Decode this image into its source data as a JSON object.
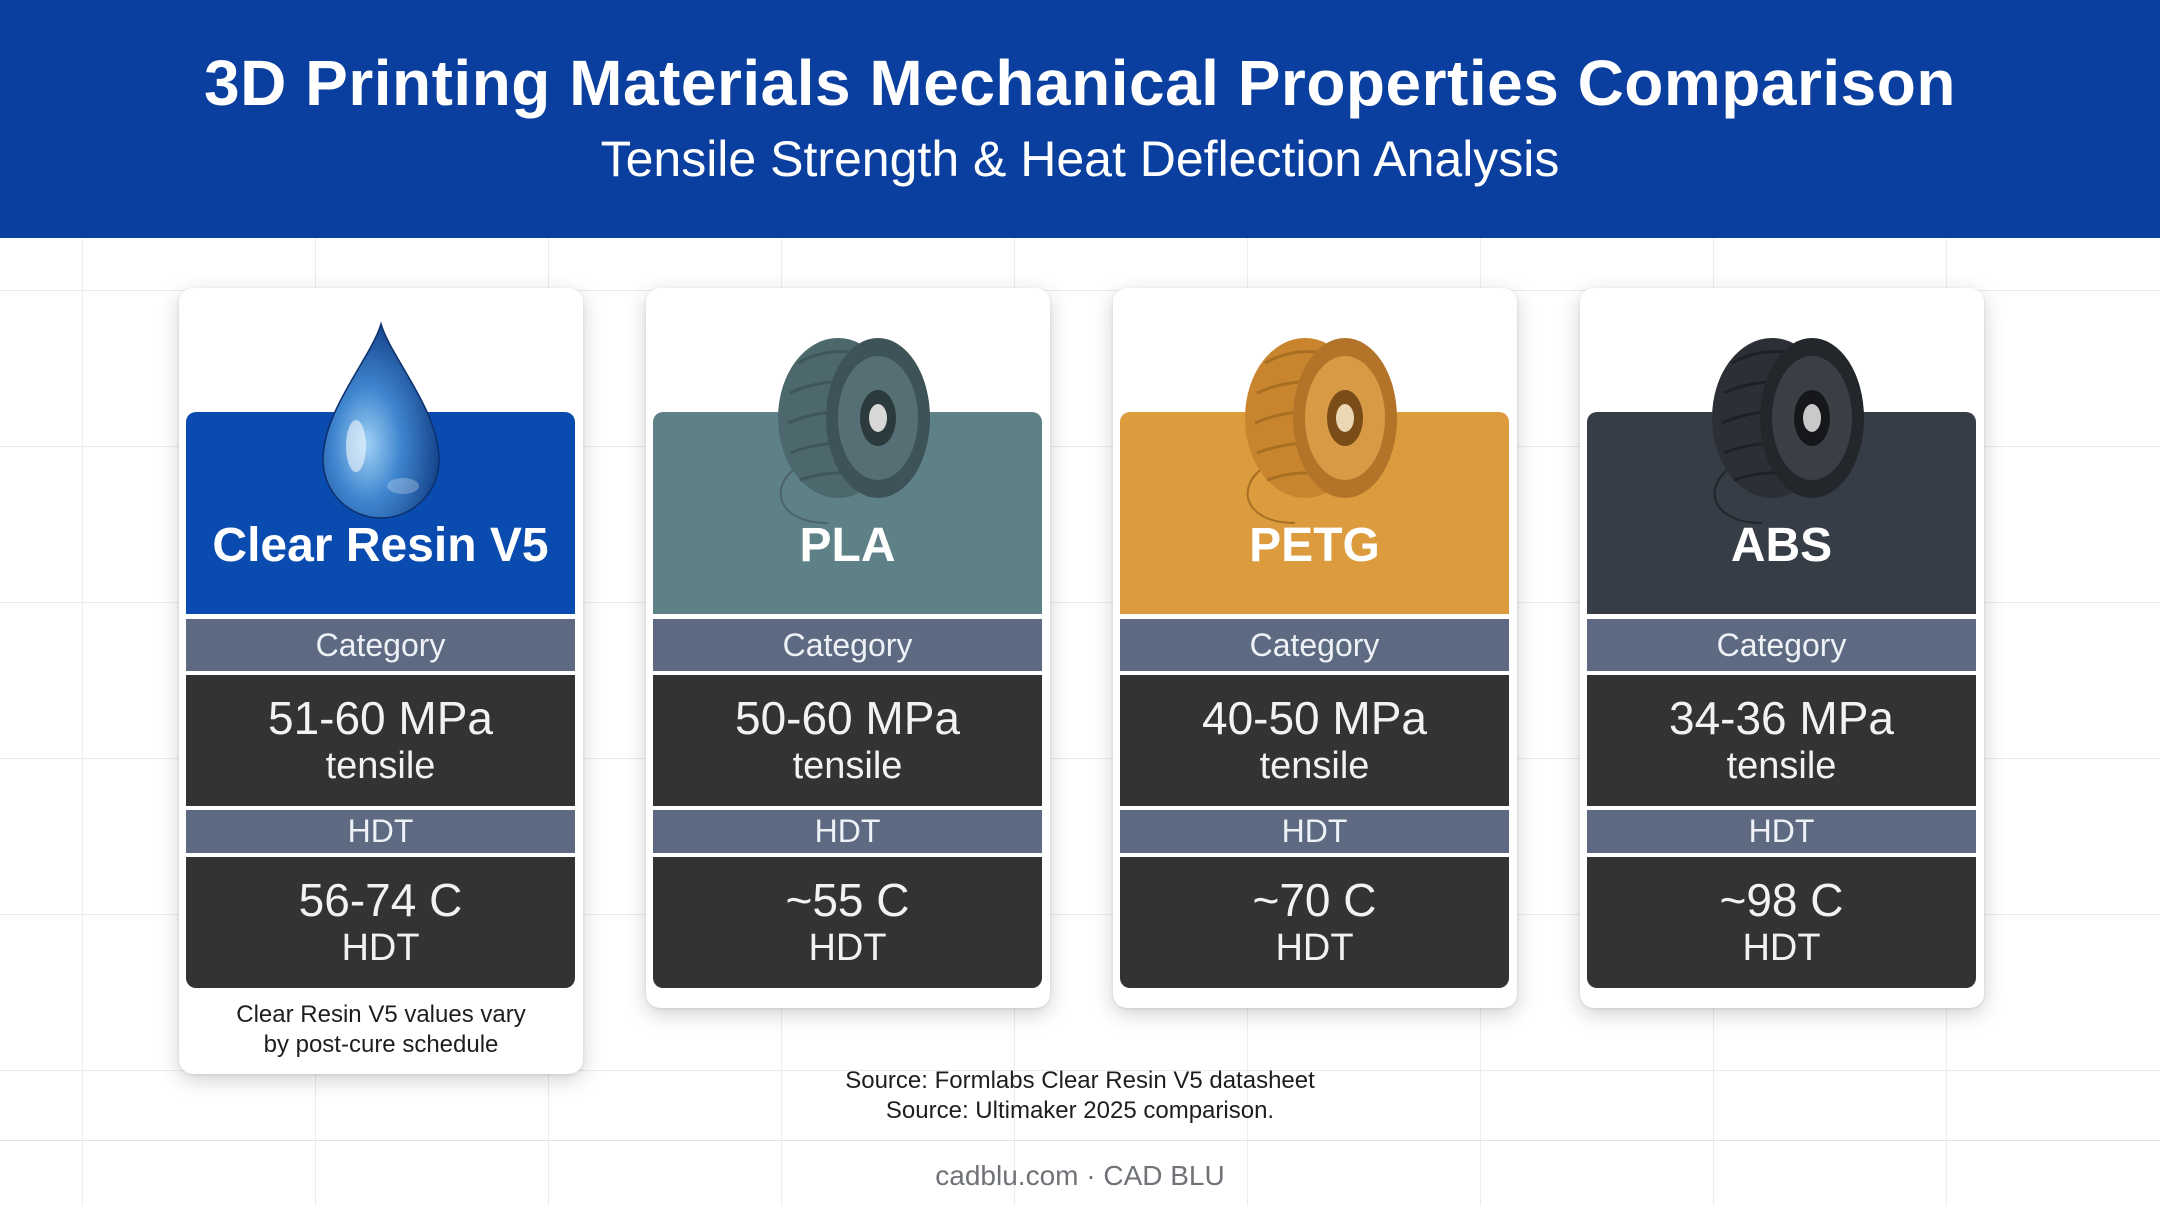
{
  "header": {
    "title": "3D Printing Materials Mechanical Properties Comparison",
    "subtitle": "Tensile Strength & Heat Deflection Analysis"
  },
  "materials": [
    {
      "name": "Clear Resin V5",
      "icon": "resin-droplet-icon",
      "accent": "#0a4bb0",
      "category_label": "Category",
      "tensile_value": "51-60 MPa",
      "tensile_label": "tensile",
      "hdt_header": "HDT",
      "hdt_value": "56-74 C",
      "hdt_label": "HDT",
      "note_line1": "Clear Resin V5 values vary",
      "note_line2": "by post-cure schedule"
    },
    {
      "name": "PLA",
      "icon": "filament-spool-icon",
      "accent": "#5e8087",
      "category_label": "Category",
      "tensile_value": "50-60 MPa",
      "tensile_label": "tensile",
      "hdt_header": "HDT",
      "hdt_value": "~55 C",
      "hdt_label": "HDT"
    },
    {
      "name": "PETG",
      "icon": "filament-spool-icon",
      "accent": "#dc9c3e",
      "category_label": "Category",
      "tensile_value": "40-50 MPa",
      "tensile_label": "tensile",
      "hdt_header": "HDT",
      "hdt_value": "~70 C",
      "hdt_label": "HDT"
    },
    {
      "name": "ABS",
      "icon": "filament-spool-icon",
      "accent": "#363d47",
      "category_label": "Category",
      "tensile_value": "34-36 MPa",
      "tensile_label": "tensile",
      "hdt_header": "HDT",
      "hdt_value": "~98 C",
      "hdt_label": "HDT"
    }
  ],
  "sources": {
    "line1": "Source: Formlabs Clear Resin V5 datasheet",
    "line2": "Source: Ultimaker 2025 comparison."
  },
  "footer": {
    "credit": "cadblu.com · CAD BLU"
  }
}
